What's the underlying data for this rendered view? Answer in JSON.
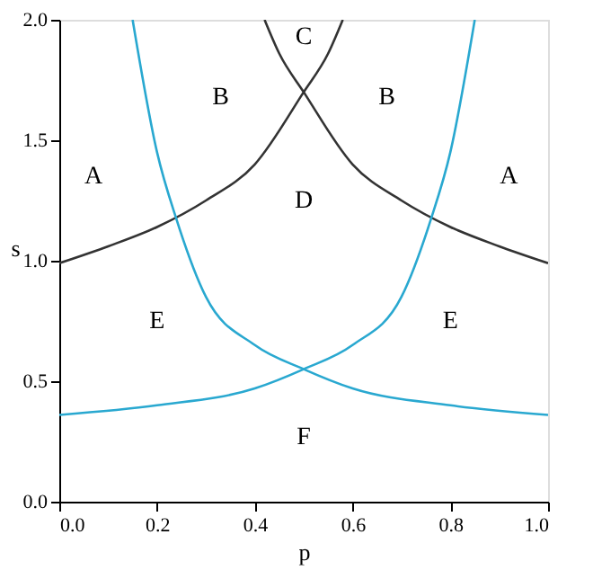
{
  "chart_data": {
    "type": "line",
    "xlabel": "p",
    "ylabel": "s",
    "xlim": [
      0.0,
      1.0
    ],
    "ylim": [
      0.0,
      2.0
    ],
    "xticks": [
      {
        "value": 0,
        "label": "0.0"
      },
      0.2,
      0.4,
      0.6,
      0.8,
      {
        "value": 1,
        "label": "1.0"
      }
    ],
    "yticks": [
      {
        "value": 0,
        "label": "0.0"
      },
      0.5,
      {
        "value": 1,
        "label": "1.0"
      },
      1.5,
      {
        "value": 2,
        "label": "2.0"
      }
    ],
    "grid": false,
    "legend": false,
    "marker": "none",
    "line_style": "solid",
    "series": [
      {
        "color": "#333333",
        "x": [
          0.0,
          0.1,
          0.2,
          0.3,
          0.4,
          0.5,
          0.55,
          0.58
        ],
        "values": [
          0.99,
          1.06,
          1.14,
          1.25,
          1.4,
          1.7,
          1.86,
          2.0
        ]
      },
      {
        "color": "#333333",
        "x": [
          0.42,
          0.45,
          0.5,
          0.6,
          0.7,
          0.8,
          0.9,
          1.0
        ],
        "values": [
          2.0,
          1.86,
          1.7,
          1.4,
          1.25,
          1.14,
          1.06,
          0.99
        ]
      },
      {
        "color": "#29a8d0",
        "x": [
          0.0,
          0.2,
          0.4,
          0.5,
          0.6,
          0.7,
          0.76,
          0.8,
          0.85
        ],
        "values": [
          0.36,
          0.4,
          0.47,
          0.55,
          0.65,
          0.85,
          1.17,
          1.45,
          2.0
        ]
      },
      {
        "color": "#29a8d0",
        "x": [
          0.15,
          0.2,
          0.24,
          0.3,
          0.4,
          0.5,
          0.6,
          0.8,
          1.0
        ],
        "values": [
          2.0,
          1.45,
          1.17,
          0.85,
          0.65,
          0.55,
          0.47,
          0.4,
          0.36
        ]
      }
    ],
    "annotations": [
      "A",
      "B",
      "C",
      "B",
      "A",
      "D",
      "E",
      "E",
      "F"
    ]
  }
}
